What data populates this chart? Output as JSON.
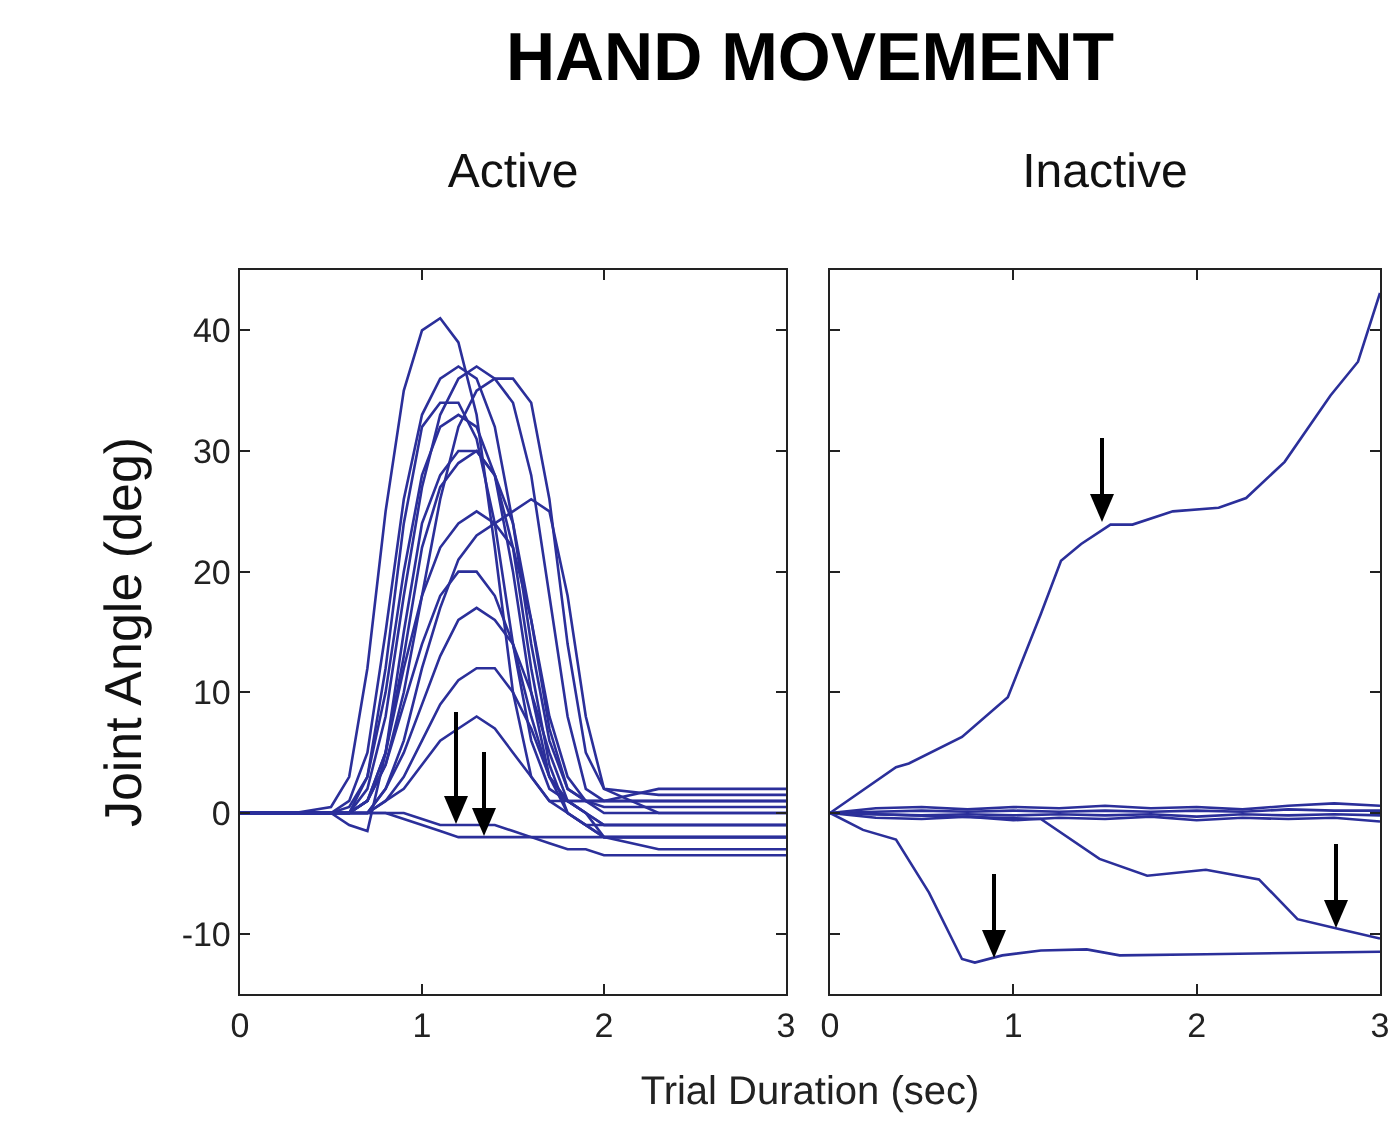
{
  "chart_data": [
    {
      "type": "line",
      "title": "HAND MOVEMENT",
      "subtitle": "Active",
      "xlabel": "Trial Duration (sec)",
      "ylabel": "Joint Angle (deg)",
      "xlim": [
        0,
        3
      ],
      "ylim": [
        -15,
        45
      ],
      "xticks": [
        0,
        1,
        2,
        3
      ],
      "yticks": [
        -10,
        0,
        10,
        20,
        30,
        40
      ],
      "x": [
        0,
        0.3,
        0.5,
        0.6,
        0.7,
        0.8,
        0.9,
        1.0,
        1.1,
        1.2,
        1.3,
        1.4,
        1.5,
        1.6,
        1.7,
        1.8,
        1.9,
        2.0,
        2.3,
        2.6,
        3.0
      ],
      "series": [
        {
          "color": "#2b2f9a",
          "values": [
            0,
            0,
            0.5,
            3,
            12,
            25,
            35,
            40,
            41,
            39,
            33,
            22,
            10,
            3,
            1,
            1,
            1,
            1,
            1,
            1,
            1
          ]
        },
        {
          "color": "#2b2f9a",
          "values": [
            0,
            0,
            0,
            1,
            5,
            15,
            26,
            33,
            36,
            37,
            36,
            32,
            24,
            14,
            6,
            2,
            1,
            0.5,
            0.5,
            0.5,
            0.5
          ]
        },
        {
          "color": "#2b2f9a",
          "values": [
            0,
            0,
            0,
            0,
            2,
            8,
            18,
            27,
            33,
            36,
            37,
            36,
            34,
            28,
            18,
            8,
            2,
            1,
            1,
            1,
            1
          ]
        },
        {
          "color": "#2b2f9a",
          "values": [
            0,
            0,
            0,
            0,
            1,
            4,
            10,
            18,
            26,
            32,
            35,
            36,
            36,
            34,
            26,
            14,
            5,
            2,
            1.5,
            1.5,
            1.5
          ]
        },
        {
          "color": "#2b2f9a",
          "values": [
            0,
            0,
            0,
            0.5,
            3,
            10,
            20,
            28,
            32,
            33,
            32,
            28,
            20,
            10,
            3,
            0,
            -1,
            -1,
            -1,
            -1,
            -1
          ]
        },
        {
          "color": "#2b2f9a",
          "values": [
            0,
            0,
            0,
            -1,
            -1.5,
            5,
            15,
            24,
            28,
            30,
            30,
            28,
            22,
            12,
            4,
            0,
            -1,
            -2,
            -2,
            -2,
            -2
          ]
        },
        {
          "color": "#2b2f9a",
          "values": [
            0,
            0,
            0,
            0,
            0,
            2,
            6,
            12,
            17,
            21,
            23,
            24,
            25,
            26,
            25,
            18,
            8,
            2,
            0,
            0,
            0
          ]
        },
        {
          "color": "#2b2f9a",
          "values": [
            0,
            0,
            0,
            0,
            1,
            5,
            12,
            18,
            22,
            24,
            25,
            24,
            22,
            16,
            8,
            3,
            1,
            0,
            0,
            0,
            0
          ]
        },
        {
          "color": "#2b2f9a",
          "values": [
            0,
            0,
            0,
            0,
            1,
            4,
            9,
            14,
            18,
            20,
            20,
            18,
            14,
            8,
            3,
            1,
            0,
            -1,
            -1,
            -1,
            -1
          ]
        },
        {
          "color": "#2b2f9a",
          "values": [
            0,
            0,
            0,
            0,
            0,
            2,
            5,
            9,
            13,
            16,
            17,
            16,
            14,
            10,
            5,
            1,
            0,
            -1,
            -1,
            -1,
            -1
          ]
        },
        {
          "color": "#2b2f9a",
          "values": [
            0,
            0,
            0,
            0,
            0,
            1,
            3,
            6,
            9,
            11,
            12,
            12,
            10,
            7,
            3,
            1,
            0,
            -2,
            -2,
            -2,
            -2
          ]
        },
        {
          "color": "#2b2f9a",
          "values": [
            0,
            0,
            0,
            0,
            0,
            1,
            2,
            4,
            6,
            7,
            8,
            7,
            5,
            3,
            1,
            0,
            -1,
            -2,
            -3,
            -3,
            -3
          ]
        },
        {
          "color": "#2b2f9a",
          "values": [
            0,
            0,
            0,
            0,
            0,
            0,
            -0.5,
            -1,
            -1.5,
            -2,
            -2,
            -2,
            -2,
            -2,
            -2,
            -2,
            -2,
            -2,
            -2,
            -2,
            -2
          ]
        },
        {
          "color": "#2b2f9a",
          "values": [
            0,
            0,
            0,
            0,
            0,
            0,
            0,
            -0.5,
            -1,
            -1,
            -1,
            -1,
            -1.5,
            -2,
            -2.5,
            -3,
            -3,
            -3.5,
            -3.5,
            -3.5,
            -3.5
          ]
        },
        {
          "color": "#2b2f9a",
          "values": [
            0,
            0,
            0,
            0,
            1,
            5,
            13,
            22,
            27,
            29,
            30,
            28,
            24,
            16,
            7,
            2,
            1,
            1,
            2,
            2,
            2
          ]
        },
        {
          "color": "#2b2f9a",
          "values": [
            0,
            0,
            0,
            0,
            3,
            12,
            24,
            32,
            34,
            34,
            31,
            24,
            14,
            6,
            2,
            1,
            1,
            1,
            1,
            1,
            1
          ]
        }
      ]
    },
    {
      "type": "line",
      "subtitle": "Inactive",
      "xlim": [
        0,
        3
      ],
      "ylim": [
        -15,
        45
      ],
      "xticks": [
        0,
        1,
        2,
        3
      ],
      "yticks": [
        -10,
        0,
        10,
        20,
        30,
        40
      ],
      "tick_labels": "x",
      "series": [
        {
          "color": "#2b2f9a",
          "x": [
            0,
            0.25,
            0.5,
            0.75,
            1,
            1.25,
            1.5,
            1.75,
            2,
            2.25,
            2.5,
            2.75,
            3
          ],
          "values": [
            0,
            0.4,
            0.5,
            0.3,
            0.5,
            0.4,
            0.6,
            0.4,
            0.5,
            0.3,
            0.6,
            0.8,
            0.6
          ]
        },
        {
          "color": "#2b2f9a",
          "x": [
            0,
            0.25,
            0.5,
            0.75,
            1,
            1.25,
            1.5,
            1.75,
            2,
            2.25,
            2.5,
            2.75,
            3
          ],
          "values": [
            0,
            -0.4,
            -0.5,
            -0.3,
            -0.6,
            -0.4,
            -0.5,
            -0.3,
            -0.6,
            -0.4,
            -0.5,
            -0.4,
            -0.7
          ]
        },
        {
          "color": "#2b2f9a",
          "x": [
            0,
            0.25,
            0.5,
            0.75,
            1,
            1.25,
            1.5,
            1.75,
            2,
            2.25,
            2.5,
            2.75,
            3
          ],
          "values": [
            0,
            0.1,
            0.2,
            0.1,
            0.2,
            0.1,
            0.2,
            0.1,
            0.2,
            0.1,
            0.3,
            0.2,
            0.2
          ]
        },
        {
          "color": "#2b2f9a",
          "x": [
            0,
            0.25,
            0.5,
            0.75,
            1,
            1.25,
            1.5,
            1.75,
            2,
            2.25,
            2.5,
            2.75,
            3
          ],
          "values": [
            0,
            -0.1,
            -0.2,
            -0.1,
            -0.2,
            -0.1,
            -0.2,
            -0.1,
            -0.3,
            -0.1,
            -0.2,
            -0.1,
            -0.2
          ]
        },
        {
          "color": "#2b2f9a",
          "x": [
            0,
            0.36,
            0.43,
            0.72,
            0.97,
            1.15,
            1.26,
            1.37,
            1.53,
            1.65,
            1.87,
            2.12,
            2.27,
            2.48,
            2.73,
            2.88,
            3
          ],
          "values": [
            0,
            3.8,
            4.1,
            6.3,
            9.6,
            16.5,
            20.9,
            22.3,
            23.9,
            23.9,
            25,
            25.3,
            26.1,
            29.1,
            34.6,
            37.4,
            43.1
          ]
        },
        {
          "color": "#2b2f9a",
          "x": [
            0,
            0.18,
            0.36,
            0.54,
            0.72,
            0.79,
            0.94,
            1.15,
            1.4,
            1.58,
            2.05,
            3
          ],
          "values": [
            0,
            -1.4,
            -2.2,
            -6.6,
            -12.1,
            -12.4,
            -11.8,
            -11.4,
            -11.3,
            -11.8,
            -11.7,
            -11.5
          ]
        },
        {
          "color": "#2b2f9a",
          "x": [
            0,
            1.15,
            1.47,
            1.73,
            2.05,
            2.34,
            2.55,
            2.77,
            3
          ],
          "values": [
            0,
            -0.5,
            -3.8,
            -5.2,
            -4.7,
            -5.5,
            -8.8,
            -9.6,
            -10.4
          ]
        }
      ]
    }
  ]
}
